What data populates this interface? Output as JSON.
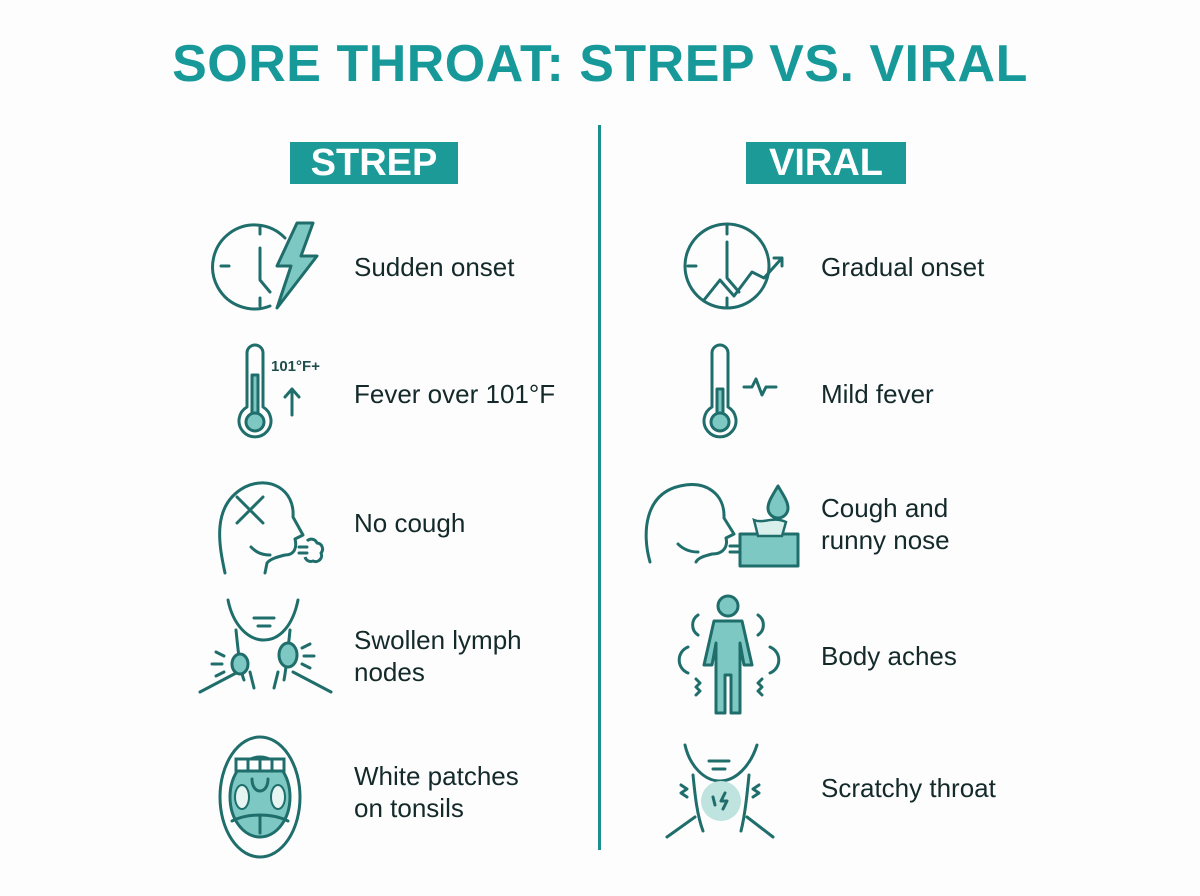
{
  "title": "SORE THROAT: STREP VS. VIRAL",
  "colors": {
    "accent": "#1b9a98",
    "icon_stroke": "#1f6e6c",
    "icon_fill": "#7ec8c3",
    "text": "#14292a"
  },
  "strep": {
    "heading": "STREP",
    "items": [
      {
        "icon": "clock-lightning-icon",
        "label": "Sudden onset"
      },
      {
        "icon": "thermometer-high-icon",
        "label": "Fever over 101°F",
        "icon_text": "101°F+"
      },
      {
        "icon": "head-no-cough-icon",
        "label": "No cough"
      },
      {
        "icon": "swollen-lymph-nodes-icon",
        "label": "Swollen lymph\nnodes"
      },
      {
        "icon": "open-mouth-tonsils-icon",
        "label": "White patches\non tonsils"
      }
    ]
  },
  "viral": {
    "heading": "VIRAL",
    "items": [
      {
        "icon": "clock-trend-icon",
        "label": "Gradual onset"
      },
      {
        "icon": "thermometer-mild-icon",
        "label": "Mild fever"
      },
      {
        "icon": "head-cough-tissue-icon",
        "label": "Cough and\nrunny nose"
      },
      {
        "icon": "body-aches-icon",
        "label": "Body aches"
      },
      {
        "icon": "scratchy-throat-icon",
        "label": "Scratchy throat"
      }
    ]
  }
}
